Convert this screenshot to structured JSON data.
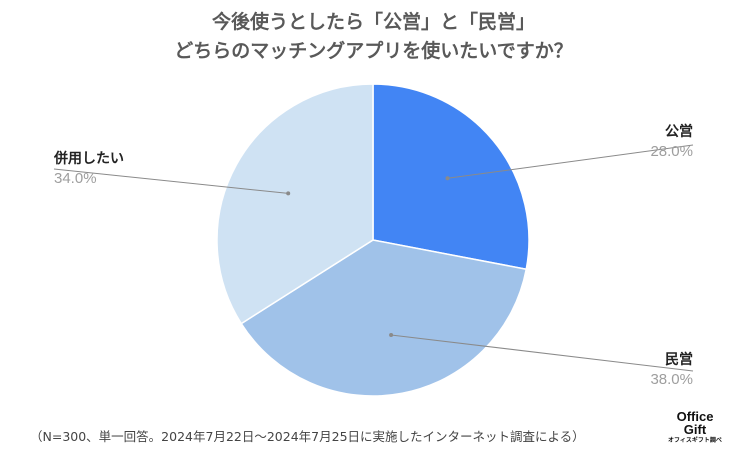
{
  "chart_data": {
    "type": "pie",
    "title_line1": "今後使うとしたら「公営」と「民営」",
    "title_line2": "どちらのマッチングアプリを使いたいですか？",
    "slices": [
      {
        "label": "公営",
        "value": 28.0,
        "value_text": "28.0%",
        "color": "#4285f4"
      },
      {
        "label": "民営",
        "value": 38.0,
        "value_text": "38.0%",
        "color": "#a0c2e9"
      },
      {
        "label": "併用したい",
        "value": 34.0,
        "value_text": "34.0%",
        "color": "#cfe2f3"
      }
    ],
    "start": "12 o'clock",
    "direction": "clockwise"
  },
  "footnote": "（N=300、単一回答。2024年7月22日～2024年7月25日に実施したインターネット調査による）",
  "logo": {
    "line1": "Office",
    "line2": "Gift",
    "line3": "オフィスギフト調べ"
  }
}
